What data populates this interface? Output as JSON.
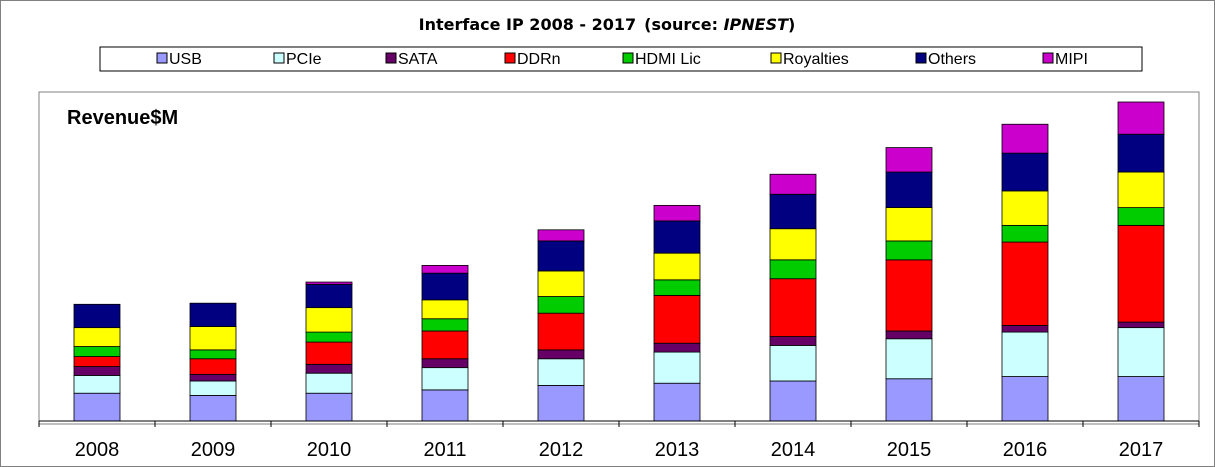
{
  "chart_data": {
    "type": "bar",
    "stacked": true,
    "title": "Interface IP  2008 - 2017",
    "title_source_prefix": "(source: ",
    "title_source_name": "IPNEST",
    "title_source_suffix": ")",
    "plot_label": "Revenue$M",
    "legend_position": "top",
    "grid": false,
    "categories": [
      "2008",
      "2009",
      "2010",
      "2011",
      "2012",
      "2013",
      "2014",
      "2015",
      "2016",
      "2017"
    ],
    "ylim": [
      0,
      296
    ],
    "series": [
      {
        "name": "USB",
        "color": "#9999ff",
        "values": [
          25,
          23,
          25,
          28,
          32,
          34,
          36,
          38,
          40,
          40
        ]
      },
      {
        "name": "PCIe",
        "color": "#ccffff",
        "values": [
          16,
          13,
          18,
          20,
          24,
          28,
          32,
          36,
          40,
          44
        ]
      },
      {
        "name": "SATA",
        "color": "#660066",
        "values": [
          8,
          6,
          8,
          8,
          8,
          8,
          8,
          7,
          6,
          5
        ]
      },
      {
        "name": "DDRn",
        "color": "#ff0000",
        "values": [
          9,
          14,
          20,
          25,
          33,
          43,
          52,
          64,
          75,
          87
        ]
      },
      {
        "name": "HDMI Lic",
        "color": "#00cc00",
        "values": [
          9,
          8,
          9,
          11,
          15,
          14,
          17,
          17,
          15,
          16
        ]
      },
      {
        "name": "Royalties",
        "color": "#ffff00",
        "values": [
          17,
          21,
          22,
          17,
          23,
          24,
          28,
          30,
          31,
          32
        ]
      },
      {
        "name": "Others",
        "color": "#000080",
        "values": [
          21,
          21,
          21,
          24,
          27,
          29,
          31,
          32,
          34,
          34
        ]
      },
      {
        "name": "MIPI",
        "color": "#cc00cc",
        "values": [
          0,
          0,
          2,
          7,
          10,
          14,
          18,
          22,
          26,
          29
        ]
      }
    ]
  }
}
